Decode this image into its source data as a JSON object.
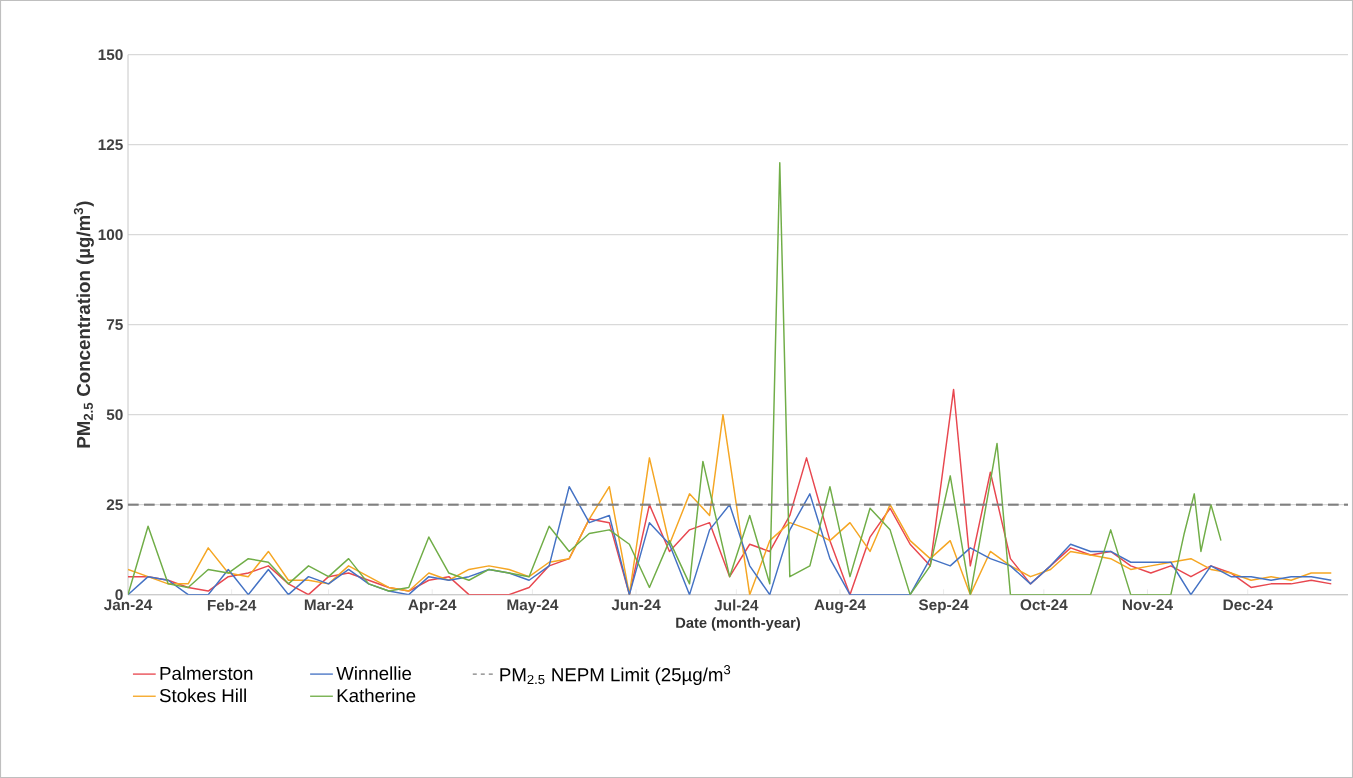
{
  "chart_data": {
    "type": "line",
    "xlabel": "Date (month-year)",
    "ylabel": "PM$_{2.5}$ Concentration (µg/m$^{3}$)",
    "xlim": [
      "2024-01-01",
      "2024-12-31"
    ],
    "xticks": [
      {
        "value": "2024-01-01",
        "label": "Jan-24"
      },
      {
        "value": "2024-02-01",
        "label": "Feb-24"
      },
      {
        "value": "2024-03-01",
        "label": "Mar-24"
      },
      {
        "value": "2024-04-01",
        "label": "Apr-24"
      },
      {
        "value": "2024-05-01",
        "label": "May-24"
      },
      {
        "value": "2024-06-01",
        "label": "Jun-24"
      },
      {
        "value": "2024-07-01",
        "label": "Jul-24"
      },
      {
        "value": "2024-08-01",
        "label": "Aug-24"
      },
      {
        "value": "2024-09-01",
        "label": "Sep-24"
      },
      {
        "value": "2024-10-01",
        "label": "Oct-24"
      },
      {
        "value": "2024-11-01",
        "label": "Nov-24"
      },
      {
        "value": "2024-12-01",
        "label": "Dec-24"
      }
    ],
    "ylim": [
      0,
      150
    ],
    "yticks": [
      0,
      25,
      50,
      75,
      100,
      125,
      150
    ],
    "grid": "y",
    "legend": "bottom",
    "ref_lines": [
      {
        "axis": "y",
        "value": 25,
        "label": "PM$_{2.5}$ NEPM Limit (25µg/m$^{3}$",
        "color": "#808080",
        "line_style": "dashed"
      }
    ],
    "series": [
      {
        "name": "Palmerston",
        "color": "#e8474f",
        "x": [
          "2024-01-01",
          "2024-01-07",
          "2024-01-13",
          "2024-01-19",
          "2024-01-25",
          "2024-01-31",
          "2024-02-06",
          "2024-02-12",
          "2024-02-18",
          "2024-02-24",
          "2024-03-01",
          "2024-03-07",
          "2024-03-13",
          "2024-03-19",
          "2024-03-25",
          "2024-03-31",
          "2024-04-06",
          "2024-04-12",
          "2024-04-18",
          "2024-04-24",
          "2024-04-30",
          "2024-05-06",
          "2024-05-12",
          "2024-05-18",
          "2024-05-24",
          "2024-05-30",
          "2024-06-05",
          "2024-06-11",
          "2024-06-17",
          "2024-06-23",
          "2024-06-29",
          "2024-07-05",
          "2024-07-11",
          "2024-07-17",
          "2024-07-22",
          "2024-07-29",
          "2024-08-04",
          "2024-08-10",
          "2024-08-16",
          "2024-08-22",
          "2024-08-28",
          "2024-09-04",
          "2024-09-09",
          "2024-09-15",
          "2024-09-21",
          "2024-09-27",
          "2024-10-03",
          "2024-10-09",
          "2024-10-15",
          "2024-10-21",
          "2024-10-27",
          "2024-11-02",
          "2024-11-08",
          "2024-11-14",
          "2024-11-20",
          "2024-11-26",
          "2024-12-02",
          "2024-12-08",
          "2024-12-14",
          "2024-12-20",
          "2024-12-26"
        ],
        "values": [
          5,
          5,
          4,
          2,
          1,
          5,
          6,
          8,
          3,
          0,
          5,
          6,
          4,
          2,
          1,
          4,
          5,
          0,
          0,
          0,
          2,
          8,
          10,
          21,
          20,
          0,
          25,
          12,
          18,
          20,
          5,
          14,
          12,
          22,
          38,
          15,
          0,
          16,
          24,
          14,
          8,
          57,
          8,
          34,
          10,
          3,
          8,
          13,
          11,
          12,
          8,
          6,
          8,
          5,
          8,
          6,
          2,
          3,
          3,
          4,
          3
        ]
      },
      {
        "name": "Stokes Hill",
        "color": "#f5a623",
        "x": [
          "2024-01-01",
          "2024-01-07",
          "2024-01-13",
          "2024-01-19",
          "2024-01-25",
          "2024-01-31",
          "2024-02-06",
          "2024-02-12",
          "2024-02-18",
          "2024-02-24",
          "2024-03-01",
          "2024-03-07",
          "2024-03-13",
          "2024-03-19",
          "2024-03-25",
          "2024-03-31",
          "2024-04-06",
          "2024-04-12",
          "2024-04-18",
          "2024-04-24",
          "2024-04-30",
          "2024-05-06",
          "2024-05-12",
          "2024-05-18",
          "2024-05-24",
          "2024-05-30",
          "2024-06-05",
          "2024-06-11",
          "2024-06-17",
          "2024-06-23",
          "2024-06-27",
          "2024-07-05",
          "2024-07-11",
          "2024-07-17",
          "2024-07-23",
          "2024-07-29",
          "2024-08-04",
          "2024-08-10",
          "2024-08-16",
          "2024-08-22",
          "2024-08-28",
          "2024-09-03",
          "2024-09-09",
          "2024-09-15",
          "2024-09-21",
          "2024-09-27",
          "2024-10-03",
          "2024-10-09",
          "2024-10-15",
          "2024-10-21",
          "2024-10-27",
          "2024-11-02",
          "2024-11-08",
          "2024-11-14",
          "2024-11-20",
          "2024-11-26",
          "2024-12-02",
          "2024-12-08",
          "2024-12-14",
          "2024-12-20",
          "2024-12-26"
        ],
        "values": [
          7,
          5,
          3,
          3,
          13,
          6,
          5,
          12,
          4,
          4,
          3,
          8,
          5,
          2,
          1,
          6,
          4,
          7,
          8,
          7,
          5,
          9,
          10,
          21,
          30,
          0,
          38,
          14,
          28,
          22,
          50,
          0,
          15,
          20,
          18,
          15,
          20,
          12,
          25,
          15,
          10,
          15,
          0,
          12,
          8,
          5,
          7,
          12,
          11,
          10,
          7,
          8,
          9,
          10,
          7,
          6,
          4,
          5,
          4,
          6,
          6
        ]
      },
      {
        "name": "Winnellie",
        "color": "#4472c4",
        "x": [
          "2024-01-01",
          "2024-01-07",
          "2024-01-13",
          "2024-01-19",
          "2024-01-25",
          "2024-01-31",
          "2024-02-06",
          "2024-02-12",
          "2024-02-18",
          "2024-02-24",
          "2024-03-01",
          "2024-03-07",
          "2024-03-13",
          "2024-03-19",
          "2024-03-25",
          "2024-03-31",
          "2024-04-06",
          "2024-04-12",
          "2024-04-18",
          "2024-04-24",
          "2024-04-30",
          "2024-05-06",
          "2024-05-12",
          "2024-05-18",
          "2024-05-24",
          "2024-05-30",
          "2024-06-05",
          "2024-06-11",
          "2024-06-17",
          "2024-06-23",
          "2024-06-29",
          "2024-07-05",
          "2024-07-11",
          "2024-07-17",
          "2024-07-23",
          "2024-07-29",
          "2024-08-04",
          "2024-08-10",
          "2024-08-16",
          "2024-08-22",
          "2024-08-28",
          "2024-09-03",
          "2024-09-09",
          "2024-09-15",
          "2024-09-21",
          "2024-09-27",
          "2024-10-03",
          "2024-10-09",
          "2024-10-15",
          "2024-10-21",
          "2024-10-27",
          "2024-11-02",
          "2024-11-08",
          "2024-11-14",
          "2024-11-20",
          "2024-11-26",
          "2024-12-02",
          "2024-12-08",
          "2024-12-14",
          "2024-12-20",
          "2024-12-26"
        ],
        "values": [
          0,
          5,
          4,
          0,
          0,
          7,
          0,
          7,
          0,
          5,
          3,
          7,
          3,
          1,
          0,
          5,
          4,
          5,
          7,
          6,
          4,
          8,
          30,
          20,
          22,
          0,
          20,
          14,
          0,
          18,
          25,
          8,
          0,
          18,
          28,
          10,
          0,
          0,
          0,
          0,
          10,
          8,
          13,
          10,
          8,
          3,
          8,
          14,
          12,
          12,
          9,
          9,
          9,
          0,
          8,
          5,
          5,
          4,
          5,
          5,
          4
        ]
      },
      {
        "name": "Katherine",
        "color": "#70ad47",
        "x": [
          "2024-01-01",
          "2024-01-07",
          "2024-01-13",
          "2024-01-19",
          "2024-01-25",
          "2024-01-31",
          "2024-02-06",
          "2024-02-12",
          "2024-02-18",
          "2024-02-24",
          "2024-03-01",
          "2024-03-07",
          "2024-03-13",
          "2024-03-19",
          "2024-03-25",
          "2024-03-31",
          "2024-04-06",
          "2024-04-12",
          "2024-04-18",
          "2024-04-24",
          "2024-04-30",
          "2024-05-06",
          "2024-05-12",
          "2024-05-18",
          "2024-05-24",
          "2024-05-30",
          "2024-06-05",
          "2024-06-11",
          "2024-06-17",
          "2024-06-21",
          "2024-06-29",
          "2024-07-05",
          "2024-07-11",
          "2024-07-14",
          "2024-07-17",
          "2024-07-23",
          "2024-07-29",
          "2024-08-04",
          "2024-08-10",
          "2024-08-16",
          "2024-08-22",
          "2024-08-28",
          "2024-09-03",
          "2024-09-09",
          "2024-09-17",
          "2024-09-21",
          "2024-09-27",
          "2024-10-03",
          "2024-10-09",
          "2024-10-15",
          "2024-10-21",
          "2024-10-27",
          "2024-11-02",
          "2024-11-08",
          "2024-11-12",
          "2024-11-15",
          "2024-11-17",
          "2024-11-20",
          "2024-11-23"
        ],
        "values": [
          0,
          19,
          3,
          2,
          7,
          6,
          10,
          9,
          3,
          8,
          5,
          10,
          3,
          1,
          2,
          16,
          6,
          4,
          7,
          6,
          5,
          19,
          12,
          17,
          18,
          14,
          2,
          15,
          3,
          37,
          5,
          22,
          3,
          120,
          5,
          8,
          30,
          5,
          24,
          18,
          0,
          8,
          33,
          0,
          42,
          0,
          0,
          0,
          0,
          0,
          18,
          0,
          0,
          0,
          17,
          28,
          12,
          25,
          15
        ]
      }
    ]
  }
}
